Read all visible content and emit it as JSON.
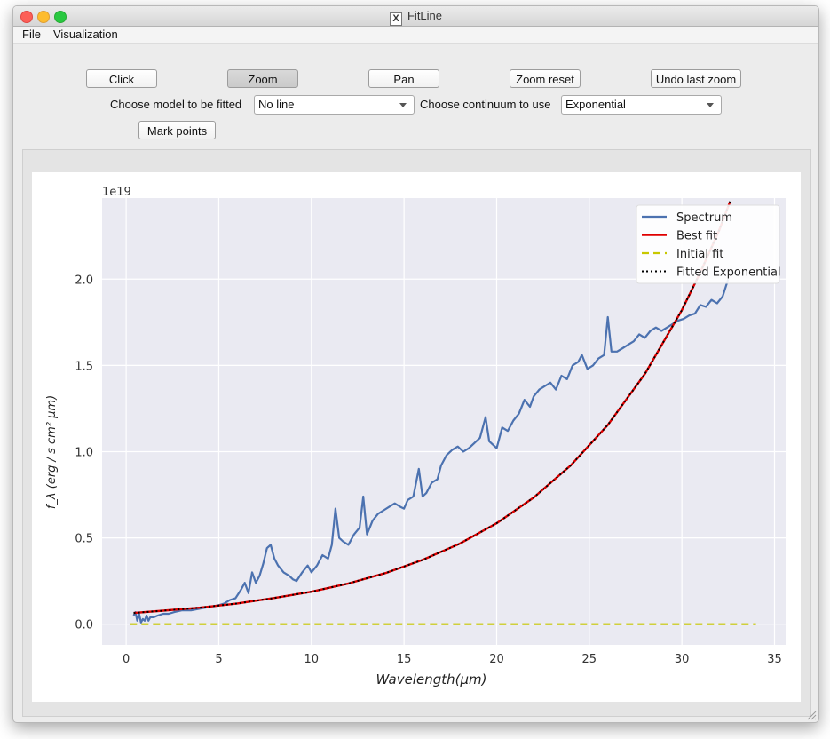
{
  "window": {
    "title": "FitLine",
    "title_icon": "x11-icon"
  },
  "menubar": {
    "items": [
      "File",
      "Visualization"
    ]
  },
  "toolbar": {
    "click_label": "Click",
    "zoom_label": "Zoom",
    "pan_label": "Pan",
    "zoom_reset_label": "Zoom reset",
    "undo_zoom_label": "Undo last zoom",
    "mark_points_label": "Mark points",
    "active": "Zoom"
  },
  "controls": {
    "model_label": "Choose model to be fitted",
    "model_value": "No line",
    "continuum_label": "Choose continuum to use",
    "continuum_value": "Exponential"
  },
  "colors": {
    "spectrum": "#4c72b0",
    "best_fit": "#e00000",
    "initial_fit": "#c8c800",
    "fitted_exponential": "#000000",
    "axes_bg": "#eaeaf2"
  },
  "chart_data": {
    "type": "line",
    "xlabel": "Wavelength(μm)",
    "ylabel": "f_λ (erg / s cm² μm)",
    "y_offset_text": "1e19",
    "xlim": [
      -1.3,
      35.6
    ],
    "ylim": [
      -0.12,
      2.47
    ],
    "xticks": [
      0,
      5,
      10,
      15,
      20,
      25,
      30,
      35
    ],
    "yticks": [
      0.0,
      0.5,
      1.0,
      1.5,
      2.0
    ],
    "ytick_labels": [
      "0.0",
      "0.5",
      "1.0",
      "1.5",
      "2.0"
    ],
    "grid": true,
    "legend_position": "top-right",
    "series": [
      {
        "name": "Spectrum",
        "style": "solid",
        "x": [
          0.4,
          0.5,
          0.6,
          0.7,
          0.8,
          0.9,
          1.0,
          1.1,
          1.2,
          1.3,
          1.5,
          1.7,
          2.0,
          2.3,
          2.6,
          3.0,
          3.5,
          4.0,
          4.5,
          5.0,
          5.3,
          5.6,
          5.9,
          6.2,
          6.4,
          6.6,
          6.8,
          7.0,
          7.2,
          7.4,
          7.6,
          7.8,
          8.0,
          8.2,
          8.5,
          8.8,
          9.0,
          9.2,
          9.5,
          9.8,
          10.0,
          10.3,
          10.6,
          10.9,
          11.1,
          11.3,
          11.5,
          11.7,
          12.0,
          12.3,
          12.6,
          12.8,
          13.0,
          13.3,
          13.6,
          13.9,
          14.2,
          14.5,
          14.8,
          15.0,
          15.2,
          15.5,
          15.8,
          16.0,
          16.2,
          16.5,
          16.8,
          17.0,
          17.3,
          17.6,
          17.9,
          18.2,
          18.5,
          18.8,
          19.1,
          19.4,
          19.6,
          19.8,
          20.0,
          20.3,
          20.6,
          20.9,
          21.2,
          21.5,
          21.8,
          22.0,
          22.3,
          22.6,
          22.9,
          23.2,
          23.5,
          23.8,
          24.1,
          24.4,
          24.6,
          24.9,
          25.2,
          25.5,
          25.8,
          26.0,
          26.2,
          26.5,
          26.8,
          27.1,
          27.4,
          27.7,
          28.0,
          28.3,
          28.6,
          28.9,
          29.2,
          29.5,
          29.8,
          30.1,
          30.4,
          30.7,
          31.0,
          31.3,
          31.6,
          31.9,
          32.2,
          32.5
        ],
        "y": [
          0.05,
          0.07,
          0.02,
          0.06,
          0.01,
          0.03,
          0.02,
          0.05,
          0.02,
          0.04,
          0.04,
          0.05,
          0.06,
          0.06,
          0.07,
          0.08,
          0.08,
          0.09,
          0.1,
          0.11,
          0.12,
          0.14,
          0.15,
          0.2,
          0.24,
          0.18,
          0.3,
          0.24,
          0.28,
          0.35,
          0.44,
          0.46,
          0.38,
          0.34,
          0.3,
          0.28,
          0.26,
          0.25,
          0.3,
          0.34,
          0.3,
          0.34,
          0.4,
          0.38,
          0.46,
          0.67,
          0.5,
          0.48,
          0.46,
          0.52,
          0.56,
          0.74,
          0.52,
          0.6,
          0.64,
          0.66,
          0.68,
          0.7,
          0.68,
          0.67,
          0.72,
          0.74,
          0.9,
          0.74,
          0.76,
          0.82,
          0.84,
          0.92,
          0.98,
          1.01,
          1.03,
          1.0,
          1.02,
          1.05,
          1.08,
          1.2,
          1.06,
          1.04,
          1.02,
          1.14,
          1.12,
          1.18,
          1.22,
          1.3,
          1.26,
          1.32,
          1.36,
          1.38,
          1.4,
          1.36,
          1.44,
          1.42,
          1.5,
          1.52,
          1.56,
          1.48,
          1.5,
          1.54,
          1.56,
          1.78,
          1.58,
          1.58,
          1.6,
          1.62,
          1.64,
          1.68,
          1.66,
          1.7,
          1.72,
          1.7,
          1.72,
          1.74,
          1.76,
          1.77,
          1.79,
          1.8,
          1.85,
          1.84,
          1.88,
          1.86,
          1.9,
          2.0
        ]
      },
      {
        "name": "Best fit",
        "style": "solid",
        "x": [
          0.4,
          2,
          4,
          6,
          8,
          10,
          12,
          14,
          16,
          18,
          20,
          22,
          24,
          26,
          28,
          30,
          31,
          32,
          32.6
        ],
        "y": [
          0.065,
          0.078,
          0.096,
          0.12,
          0.152,
          0.188,
          0.236,
          0.296,
          0.372,
          0.466,
          0.585,
          0.734,
          0.92,
          1.155,
          1.45,
          1.82,
          2.04,
          2.28,
          2.45
        ]
      },
      {
        "name": "Initial fit",
        "style": "dashed",
        "x": [
          0.2,
          34
        ],
        "y": [
          0.0,
          0.0
        ]
      },
      {
        "name": "Fitted Exponential",
        "style": "dotted",
        "x": [
          0.4,
          2,
          4,
          6,
          8,
          10,
          12,
          14,
          16,
          18,
          20,
          22,
          24,
          26,
          28,
          30,
          31,
          32,
          32.6
        ],
        "y": [
          0.065,
          0.078,
          0.096,
          0.12,
          0.152,
          0.188,
          0.236,
          0.296,
          0.372,
          0.466,
          0.585,
          0.734,
          0.92,
          1.155,
          1.45,
          1.82,
          2.04,
          2.28,
          2.45
        ]
      }
    ]
  }
}
